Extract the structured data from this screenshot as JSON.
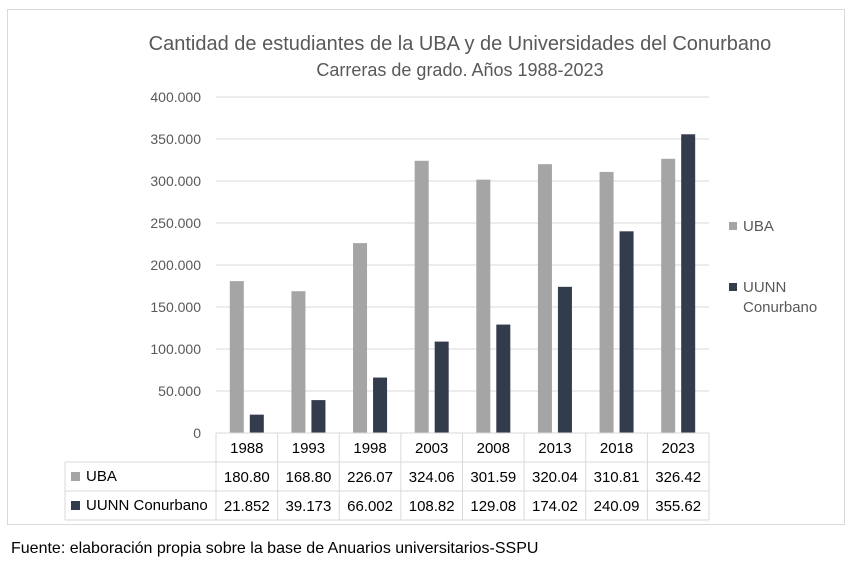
{
  "source_note": "Fuente: elaboración propia sobre la base de Anuarios universitarios-SSPU",
  "chart_data": {
    "type": "bar",
    "title": "Cantidad de estudiantes de la UBA y de Universidades del Conurbano",
    "subtitle": "Carreras de grado. Años 1988-2023",
    "categories": [
      "1988",
      "1993",
      "1998",
      "2003",
      "2008",
      "2013",
      "2018",
      "2023"
    ],
    "series": [
      {
        "name": "UBA",
        "color": "#a5a5a5",
        "values": [
          180800,
          168800,
          226070,
          324060,
          301590,
          320040,
          310810,
          326420
        ],
        "table_labels": [
          "180.80",
          "168.80",
          "226.07",
          "324.06",
          "301.59",
          "320.04",
          "310.81",
          "326.42"
        ]
      },
      {
        "name": "UUNN Conurbano",
        "legend_lines": [
          "UUNN",
          "Conurbano"
        ],
        "color": "#323c4d",
        "values": [
          21852,
          39173,
          66002,
          108820,
          129080,
          174020,
          240090,
          355620
        ],
        "table_labels": [
          "21.852",
          "39.173",
          "66.002",
          "108.82",
          "129.08",
          "174.02",
          "240.09",
          "355.62"
        ]
      }
    ],
    "ylim": [
      0,
      400000
    ],
    "yticks": [
      0,
      50000,
      100000,
      150000,
      200000,
      250000,
      300000,
      350000,
      400000
    ],
    "ytick_labels": [
      "0",
      "50.000",
      "100.000",
      "150.000",
      "200.000",
      "250.000",
      "300.000",
      "350.000",
      "400.000"
    ],
    "grid": true,
    "legend_position": "right",
    "data_table": true
  }
}
